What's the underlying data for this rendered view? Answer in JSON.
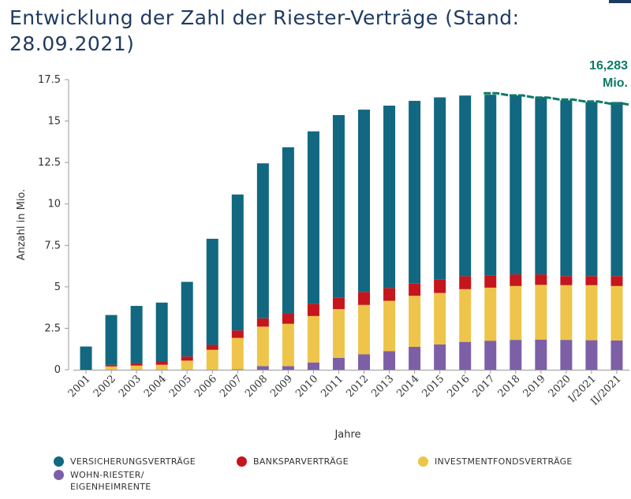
{
  "chart_data": {
    "type": "bar",
    "stacked": true,
    "title": "Entwicklung der Zahl der Riester-Verträge (Stand: 28.09.2021)",
    "xlabel": "Jahre",
    "ylabel": "Anzahl in Mio.",
    "ylim": [
      0,
      17.5
    ],
    "yticks": [
      "0",
      "2.5",
      "5",
      "7.5",
      "10",
      "12.5",
      "15",
      "17.5"
    ],
    "ytick_values": [
      0,
      2.5,
      5,
      7.5,
      10,
      12.5,
      15,
      17.5
    ],
    "categories": [
      "2001",
      "2002",
      "2003",
      "2004",
      "2005",
      "2006",
      "2007",
      "2008",
      "2009",
      "2010",
      "2011",
      "2012",
      "2013",
      "2014",
      "2015",
      "2016",
      "2017",
      "2018",
      "2019",
      "2020",
      "I/2021",
      "II/2021"
    ],
    "series": [
      {
        "name": "WOHN-RIESTER/ EIGENHEIMRENTE",
        "color": "#7d5fa8",
        "values": [
          0,
          0,
          0,
          0,
          0,
          0,
          0.02,
          0.22,
          0.22,
          0.44,
          0.72,
          0.93,
          1.12,
          1.38,
          1.53,
          1.68,
          1.75,
          1.8,
          1.82,
          1.8,
          1.78,
          1.77
        ]
      },
      {
        "name": "INVESTMENTFONDSVERTRÄGE",
        "color": "#eec54a",
        "values": [
          0,
          0.2,
          0.25,
          0.3,
          0.55,
          1.2,
          1.9,
          2.38,
          2.55,
          2.8,
          2.94,
          2.98,
          3.04,
          3.08,
          3.1,
          3.18,
          3.2,
          3.25,
          3.3,
          3.3,
          3.32,
          3.28
        ]
      },
      {
        "name": "BANKSPARVERTRÄGE",
        "color": "#c4161c",
        "values": [
          0,
          0.1,
          0.15,
          0.2,
          0.25,
          0.3,
          0.45,
          0.5,
          0.65,
          0.74,
          0.7,
          0.78,
          0.77,
          0.76,
          0.8,
          0.78,
          0.74,
          0.7,
          0.63,
          0.55,
          0.55,
          0.6
        ]
      },
      {
        "name": "VERSICHERUNGSVERTRÄGE",
        "color": "#116880",
        "values": [
          1.4,
          3.0,
          3.45,
          3.55,
          4.5,
          6.4,
          8.2,
          9.35,
          10.0,
          10.4,
          11.0,
          11.0,
          11.0,
          11.0,
          11.0,
          10.9,
          10.9,
          10.8,
          10.7,
          10.6,
          10.5,
          10.5
        ]
      }
    ],
    "legend_order": [
      "VERSICHERUNGSVERTRÄGE",
      "BANKSPARVERTRÄGE",
      "INVESTMENTFONDSVERTRÄGE",
      "WOHN-RIESTER/ EIGENHEIMRENTE"
    ],
    "legend_position": "bottom",
    "annotation": {
      "line1": "16,283",
      "line2": "Mio.",
      "color": "#0e7a66"
    },
    "trend_line": {
      "color": "#0e7a66",
      "from_index": 16,
      "to_index": 21,
      "values": [
        16.68,
        16.55,
        16.42,
        16.3,
        16.18,
        16.05
      ]
    },
    "grid": false
  }
}
